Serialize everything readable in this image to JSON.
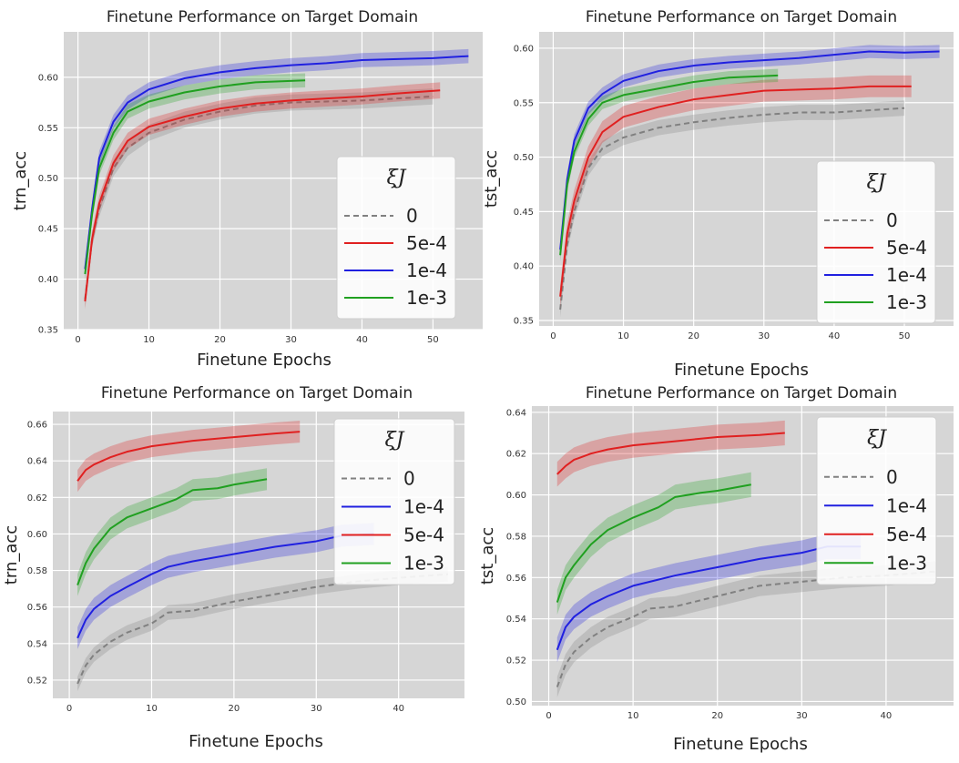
{
  "chart_data": [
    {
      "type": "line",
      "title": "Finetune Performance on Target Domain",
      "xlabel": "Finetune Epochs",
      "ylabel": "trn_acc",
      "xlim": [
        -2,
        57
      ],
      "ylim": [
        0.35,
        0.645
      ],
      "xticks": [
        0,
        10,
        20,
        30,
        40,
        50
      ],
      "yticks": [
        0.35,
        0.4,
        0.45,
        0.5,
        0.55,
        0.6
      ],
      "ytick_labels": [
        "0.35",
        "0.40",
        "0.45",
        "0.50",
        "0.55",
        "0.60"
      ],
      "grid": true,
      "legend": {
        "title": "ξJ",
        "placement": "right"
      },
      "series": [
        {
          "name": "0",
          "color": "#808080",
          "dashed": true,
          "x": [
            1,
            2,
            3,
            5,
            7,
            10,
            15,
            20,
            25,
            30,
            35,
            40,
            45,
            50
          ],
          "y": [
            0.38,
            0.44,
            0.47,
            0.51,
            0.53,
            0.545,
            0.558,
            0.566,
            0.572,
            0.575,
            0.576,
            0.577,
            0.579,
            0.581
          ],
          "band": 0.008
        },
        {
          "name": "5e-4",
          "color": "#e02020",
          "dashed": false,
          "x": [
            1,
            2,
            3,
            5,
            7,
            10,
            15,
            20,
            25,
            30,
            35,
            40,
            45,
            51
          ],
          "y": [
            0.378,
            0.44,
            0.475,
            0.515,
            0.537,
            0.551,
            0.561,
            0.569,
            0.574,
            0.577,
            0.579,
            0.581,
            0.584,
            0.587
          ],
          "band": 0.008
        },
        {
          "name": "1e-4",
          "color": "#2020e0",
          "dashed": false,
          "x": [
            1,
            2,
            3,
            5,
            7,
            10,
            15,
            20,
            25,
            30,
            35,
            40,
            45,
            50,
            55
          ],
          "y": [
            0.41,
            0.47,
            0.52,
            0.556,
            0.575,
            0.588,
            0.599,
            0.605,
            0.609,
            0.612,
            0.614,
            0.617,
            0.618,
            0.619,
            0.621
          ],
          "band": 0.007
        },
        {
          "name": "1e-3",
          "color": "#20a020",
          "dashed": false,
          "x": [
            1,
            2,
            3,
            5,
            7,
            10,
            15,
            20,
            25,
            32
          ],
          "y": [
            0.405,
            0.465,
            0.51,
            0.545,
            0.566,
            0.576,
            0.585,
            0.591,
            0.595,
            0.597
          ],
          "band": 0.007
        }
      ]
    },
    {
      "type": "line",
      "title": "Finetune Performance on Target Domain",
      "xlabel": "Finetune Epochs",
      "ylabel": "tst_acc",
      "xlim": [
        -2,
        57
      ],
      "ylim": [
        0.345,
        0.615
      ],
      "xticks": [
        0,
        10,
        20,
        30,
        40,
        50
      ],
      "yticks": [
        0.35,
        0.4,
        0.45,
        0.5,
        0.55,
        0.6
      ],
      "ytick_labels": [
        "0.35",
        "0.40",
        "0.45",
        "0.50",
        "0.55",
        "0.60"
      ],
      "grid": true,
      "legend": {
        "title": "ξJ",
        "placement": "right"
      },
      "series": [
        {
          "name": "0",
          "color": "#808080",
          "dashed": true,
          "x": [
            1,
            2,
            3,
            5,
            7,
            10,
            15,
            20,
            25,
            30,
            35,
            40,
            45,
            50
          ],
          "y": [
            0.36,
            0.42,
            0.45,
            0.49,
            0.508,
            0.518,
            0.527,
            0.532,
            0.536,
            0.539,
            0.541,
            0.541,
            0.543,
            0.545
          ],
          "band": 0.007
        },
        {
          "name": "5e-4",
          "color": "#e02020",
          "dashed": false,
          "x": [
            1,
            2,
            3,
            5,
            7,
            10,
            15,
            20,
            25,
            30,
            35,
            40,
            45,
            51
          ],
          "y": [
            0.372,
            0.43,
            0.46,
            0.5,
            0.523,
            0.537,
            0.546,
            0.553,
            0.557,
            0.561,
            0.562,
            0.563,
            0.565,
            0.565
          ],
          "band": 0.01
        },
        {
          "name": "1e-4",
          "color": "#2020e0",
          "dashed": false,
          "x": [
            1,
            2,
            3,
            5,
            7,
            10,
            15,
            20,
            25,
            30,
            35,
            40,
            45,
            50,
            55
          ],
          "y": [
            0.415,
            0.48,
            0.515,
            0.545,
            0.558,
            0.57,
            0.579,
            0.584,
            0.587,
            0.589,
            0.591,
            0.594,
            0.597,
            0.596,
            0.597
          ],
          "band": 0.006
        },
        {
          "name": "1e-3",
          "color": "#20a020",
          "dashed": false,
          "x": [
            1,
            2,
            3,
            5,
            7,
            10,
            15,
            20,
            25,
            32
          ],
          "y": [
            0.41,
            0.475,
            0.505,
            0.535,
            0.55,
            0.557,
            0.563,
            0.569,
            0.573,
            0.575
          ],
          "band": 0.006
        }
      ]
    },
    {
      "type": "line",
      "title": "Finetune Performance on Target Domain",
      "xlabel": "Finetune Epochs",
      "ylabel": "trn_acc",
      "xlim": [
        -2,
        48
      ],
      "ylim": [
        0.51,
        0.667
      ],
      "xticks": [
        0,
        10,
        20,
        30,
        40
      ],
      "yticks": [
        0.52,
        0.54,
        0.56,
        0.58,
        0.6,
        0.62,
        0.64,
        0.66
      ],
      "ytick_labels": [
        "0.52",
        "0.54",
        "0.56",
        "0.58",
        "0.60",
        "0.62",
        "0.64",
        "0.66"
      ],
      "grid": true,
      "legend": {
        "title": "ξJ",
        "placement": "right"
      },
      "series": [
        {
          "name": "0",
          "color": "#808080",
          "dashed": true,
          "x": [
            1,
            2,
            3,
            5,
            7,
            10,
            12,
            15,
            20,
            25,
            30,
            35,
            40,
            46
          ],
          "y": [
            0.518,
            0.528,
            0.534,
            0.541,
            0.546,
            0.551,
            0.557,
            0.558,
            0.563,
            0.567,
            0.571,
            0.574,
            0.576,
            0.578
          ],
          "band": 0.004
        },
        {
          "name": "1e-4",
          "color": "#2020e0",
          "dashed": false,
          "x": [
            1,
            2,
            3,
            5,
            7,
            10,
            12,
            15,
            20,
            25,
            30,
            33,
            37
          ],
          "y": [
            0.543,
            0.553,
            0.559,
            0.566,
            0.571,
            0.578,
            0.582,
            0.585,
            0.589,
            0.593,
            0.596,
            0.599,
            0.6
          ],
          "band": 0.006
        },
        {
          "name": "5e-4",
          "color": "#e02020",
          "dashed": false,
          "x": [
            1,
            2,
            3,
            5,
            7,
            10,
            15,
            20,
            25,
            28
          ],
          "y": [
            0.629,
            0.635,
            0.638,
            0.642,
            0.645,
            0.648,
            0.651,
            0.653,
            0.655,
            0.656
          ],
          "band": 0.006
        },
        {
          "name": "1e-3",
          "color": "#20a020",
          "dashed": false,
          "x": [
            1,
            2,
            3,
            5,
            7,
            10,
            13,
            15,
            18,
            20,
            24
          ],
          "y": [
            0.572,
            0.584,
            0.592,
            0.603,
            0.609,
            0.614,
            0.619,
            0.624,
            0.625,
            0.627,
            0.63
          ],
          "band": 0.006
        }
      ]
    },
    {
      "type": "line",
      "title": "Finetune Performance on Target Domain",
      "xlabel": "Finetune Epochs",
      "ylabel": "tst_acc",
      "xlim": [
        -2,
        48
      ],
      "ylim": [
        0.498,
        0.643
      ],
      "xticks": [
        0,
        10,
        20,
        30,
        40
      ],
      "yticks": [
        0.5,
        0.52,
        0.54,
        0.56,
        0.58,
        0.6,
        0.62,
        0.64
      ],
      "ytick_labels": [
        "0.50",
        "0.52",
        "0.54",
        "0.56",
        "0.58",
        "0.60",
        "0.62",
        "0.64"
      ],
      "grid": true,
      "legend": {
        "title": "ξJ",
        "placement": "right"
      },
      "series": [
        {
          "name": "0",
          "color": "#808080",
          "dashed": true,
          "x": [
            1,
            2,
            3,
            5,
            7,
            10,
            12,
            15,
            20,
            25,
            30,
            35,
            40,
            46
          ],
          "y": [
            0.507,
            0.518,
            0.524,
            0.531,
            0.536,
            0.541,
            0.545,
            0.546,
            0.551,
            0.556,
            0.558,
            0.56,
            0.561,
            0.563
          ],
          "band": 0.005
        },
        {
          "name": "1e-4",
          "color": "#2020e0",
          "dashed": false,
          "x": [
            1,
            2,
            3,
            5,
            7,
            10,
            12,
            15,
            20,
            25,
            30,
            33,
            37
          ],
          "y": [
            0.525,
            0.536,
            0.541,
            0.547,
            0.551,
            0.556,
            0.558,
            0.561,
            0.565,
            0.569,
            0.572,
            0.575,
            0.575
          ],
          "band": 0.006
        },
        {
          "name": "5e-4",
          "color": "#e02020",
          "dashed": false,
          "x": [
            1,
            2,
            3,
            5,
            7,
            10,
            15,
            20,
            25,
            28
          ],
          "y": [
            0.61,
            0.614,
            0.617,
            0.62,
            0.622,
            0.624,
            0.626,
            0.628,
            0.629,
            0.63
          ],
          "band": 0.006
        },
        {
          "name": "1e-3",
          "color": "#20a020",
          "dashed": false,
          "x": [
            1,
            2,
            3,
            5,
            7,
            10,
            13,
            15,
            18,
            20,
            24
          ],
          "y": [
            0.548,
            0.56,
            0.566,
            0.576,
            0.583,
            0.589,
            0.594,
            0.599,
            0.601,
            0.602,
            0.605
          ],
          "band": 0.006
        }
      ]
    }
  ]
}
